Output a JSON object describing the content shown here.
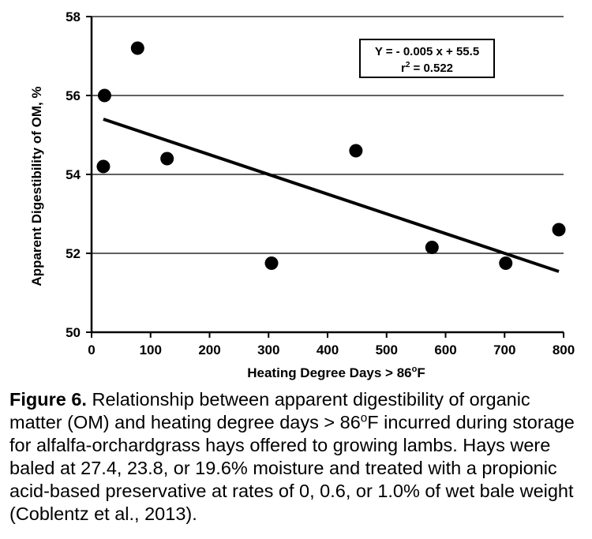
{
  "chart_data": {
    "type": "scatter",
    "xlabel": "Heating Degree Days > 86",
    "xlabel_sup": "o",
    "xlabel_unit": "F",
    "ylabel": "Apparent Digestibility of OM, %",
    "xlim": [
      0,
      800
    ],
    "ylim": [
      50,
      58
    ],
    "x_ticks": [
      "0",
      "100",
      "200",
      "300",
      "400",
      "500",
      "600",
      "700",
      "800"
    ],
    "y_ticks": [
      "50",
      "52",
      "54",
      "56",
      "58"
    ],
    "grid": "horizontal",
    "points": [
      {
        "x": 20,
        "y": 54.2
      },
      {
        "x": 22,
        "y": 56.0
      },
      {
        "x": 78,
        "y": 57.2
      },
      {
        "x": 128,
        "y": 54.4
      },
      {
        "x": 305,
        "y": 51.75
      },
      {
        "x": 448,
        "y": 54.6
      },
      {
        "x": 577,
        "y": 52.15
      },
      {
        "x": 702,
        "y": 51.75
      },
      {
        "x": 792,
        "y": 52.6
      }
    ],
    "trendline": {
      "slope": -0.005,
      "intercept": 55.5,
      "x_range": [
        20,
        792
      ]
    },
    "equation_line1": "Y = - 0.005 x + 55.5",
    "equation_line2_prefix": "r",
    "equation_line2_sup": "2",
    "equation_line2_rest": " = 0.522",
    "equation_box_position": "top-right",
    "marker_color": "#000000",
    "line_color": "#000000"
  },
  "caption": {
    "label": "Figure 6.",
    "text_part1": " Relationship between apparent digestibility of organic matter (OM) and heating degree days > 86",
    "sup": "o",
    "text_part2": "F incurred during storage for alfalfa-orchardgrass hays offered to growing lambs. Hays were baled at 27.4, 23.8, or 19.6% moisture and treated with a propionic acid-based preservative at rates of 0, 0.6, or 1.0% of wet bale weight (Coblentz et al., 2013)."
  }
}
